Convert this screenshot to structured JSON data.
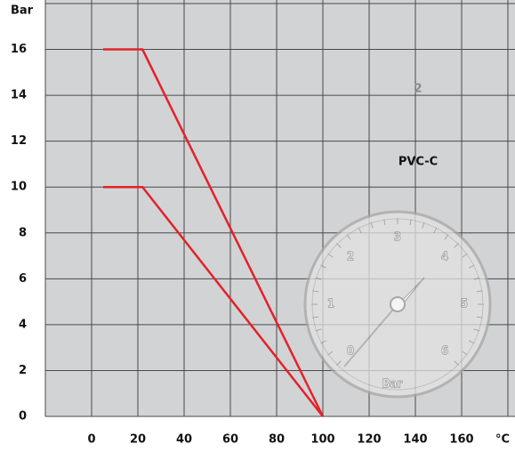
{
  "chart_data": {
    "type": "line",
    "y_label": "Bar",
    "x_label": "°C",
    "badge": "2",
    "material": "PVC-C",
    "series": [
      {
        "color": "#e3222a",
        "x": [
          5,
          22,
          100
        ],
        "values": [
          16,
          16,
          0
        ]
      },
      {
        "color": "#e3222a",
        "x": [
          5,
          22,
          100
        ],
        "values": [
          10,
          10,
          0
        ]
      }
    ],
    "xlim": [
      -20,
      180
    ],
    "xticks": [
      0,
      20,
      40,
      60,
      80,
      100,
      120,
      140,
      160
    ],
    "ylim": [
      0,
      18
    ],
    "yticks": [
      0,
      2,
      4,
      6,
      8,
      10,
      12,
      14,
      16
    ],
    "grid": true,
    "gauge": {
      "labels": [
        "0",
        "1",
        "2",
        "3",
        "4",
        "5",
        "6"
      ],
      "unit": "Bar"
    }
  }
}
